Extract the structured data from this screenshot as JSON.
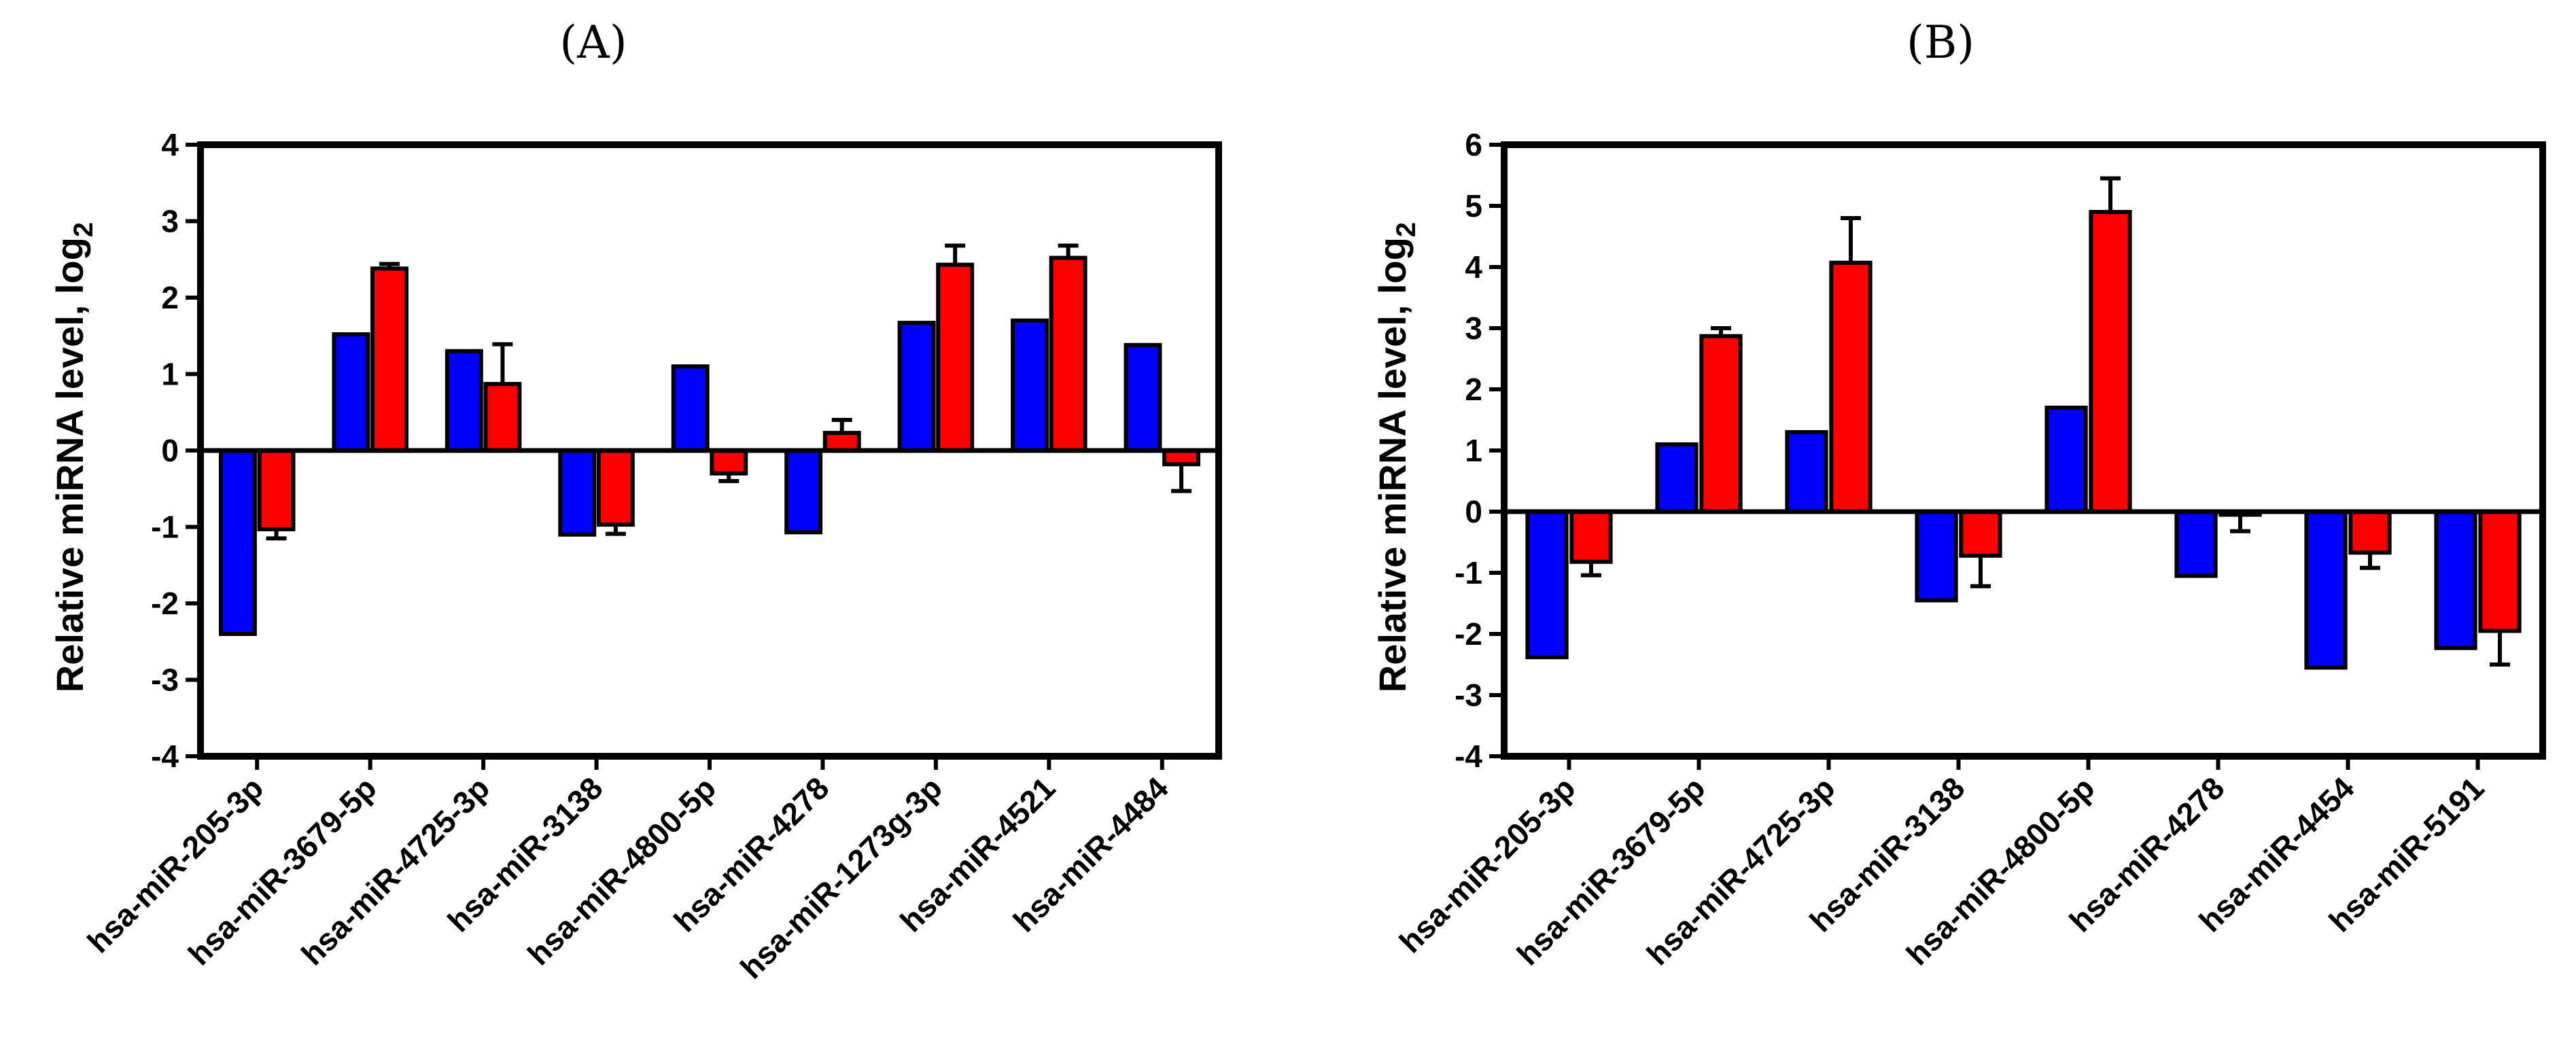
{
  "chart_data": [
    {
      "type": "bar",
      "panel_label": "A",
      "title": "(A)",
      "xlabel": "",
      "ylabel": "Relative miRNA level, log",
      "ylabel_sub": "2",
      "ylim": [
        -4,
        4
      ],
      "yticks": [
        -4,
        -3,
        -2,
        -1,
        0,
        1,
        2,
        3,
        4
      ],
      "grid": false,
      "categories": [
        "hsa-miR-205-3p",
        "hsa-miR-3679-5p",
        "hsa-miR-4725-3p",
        "hsa-miR-3138",
        "hsa-miR-4800-5p",
        "hsa-miR-4278",
        "hsa-miR-1273g-3p",
        "hsa-miR-4521",
        "hsa-miR-4484"
      ],
      "series": [
        {
          "name": "blue",
          "color": "#0000ff",
          "values": [
            -2.4,
            1.52,
            1.3,
            -1.1,
            1.1,
            -1.07,
            1.67,
            1.7,
            1.38
          ],
          "errors": [
            0,
            0,
            0,
            0,
            0,
            0,
            0,
            0,
            0
          ]
        },
        {
          "name": "red",
          "color": "#ff0000",
          "values": [
            -1.03,
            2.38,
            0.87,
            -0.97,
            -0.3,
            0.23,
            2.43,
            2.52,
            -0.18
          ],
          "errors": [
            0.12,
            0.06,
            0.52,
            0.12,
            0.1,
            0.17,
            0.25,
            0.16,
            0.35
          ]
        }
      ]
    },
    {
      "type": "bar",
      "panel_label": "B",
      "title": "(B)",
      "xlabel": "",
      "ylabel": "Relative miRNA level, log",
      "ylabel_sub": "2",
      "ylim": [
        -4,
        6
      ],
      "yticks": [
        -4,
        -3,
        -2,
        -1,
        0,
        1,
        2,
        3,
        4,
        5,
        6
      ],
      "grid": false,
      "categories": [
        "hsa-miR-205-3p",
        "hsa-miR-3679-5p",
        "hsa-miR-4725-3p",
        "hsa-miR-3138",
        "hsa-miR-4800-5p",
        "hsa-miR-4278",
        "hsa-miR-4454",
        "hsa-miR-5191"
      ],
      "series": [
        {
          "name": "blue",
          "color": "#0000ff",
          "values": [
            -2.38,
            1.1,
            1.3,
            -1.45,
            1.7,
            -1.05,
            -2.55,
            -2.23
          ],
          "errors": [
            0,
            0,
            0,
            0,
            0,
            0,
            0,
            0
          ]
        },
        {
          "name": "red",
          "color": "#ff0000",
          "values": [
            -0.82,
            2.87,
            4.07,
            -0.72,
            4.9,
            -0.05,
            -0.67,
            -1.95
          ],
          "errors": [
            0.22,
            0.13,
            0.73,
            0.5,
            0.55,
            0.27,
            0.25,
            0.55
          ]
        }
      ]
    }
  ]
}
